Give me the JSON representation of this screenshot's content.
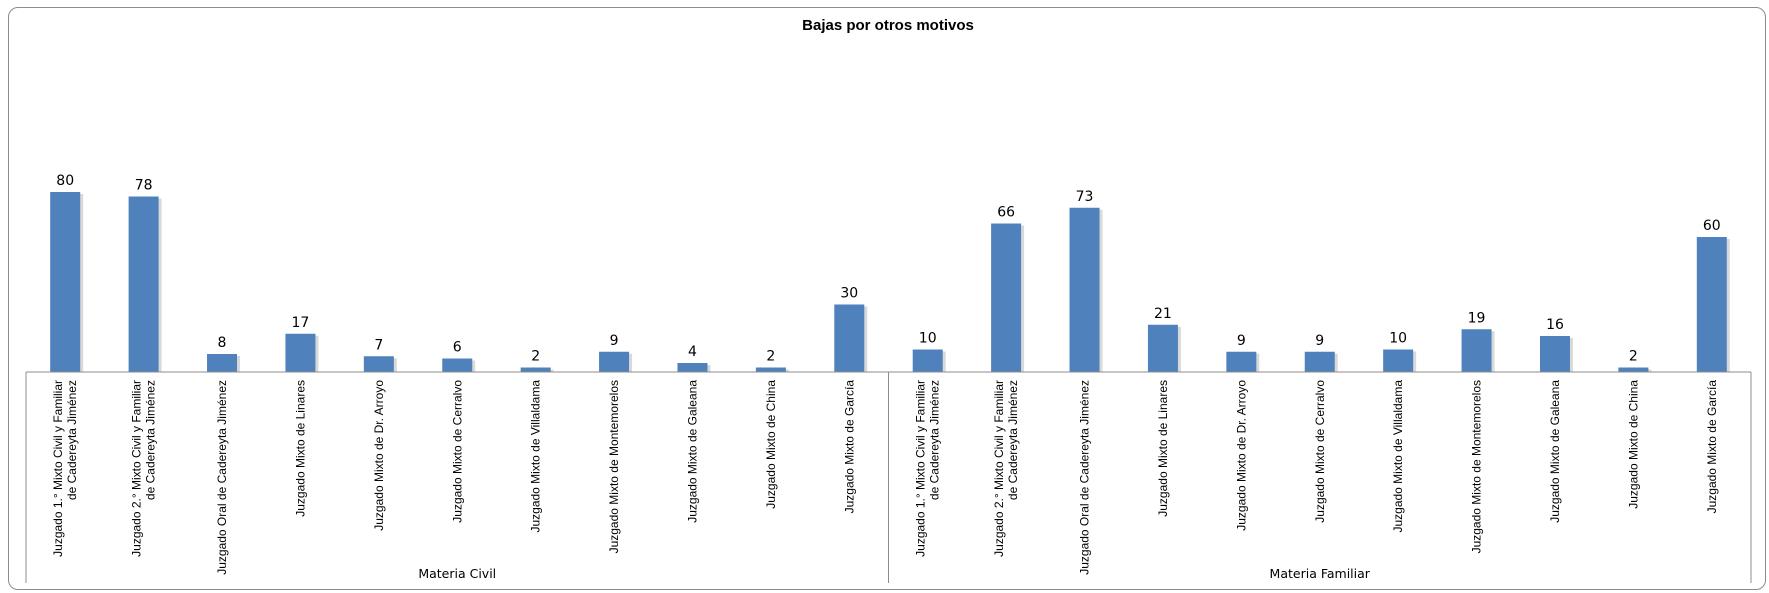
{
  "chart_data": {
    "type": "bar",
    "title": "Bajas por otros motivos",
    "xlabel": "",
    "ylabel": "",
    "ylim": [
      0,
      100
    ],
    "grid": false,
    "legend": "none",
    "bar_color": "#4f81bd",
    "groups": [
      {
        "name": "Materia Civil",
        "categories": [
          "Juzgado 1.° Mixto Civil y Familiar de Cadereyta Jiménez",
          "Juzgado 2.° Mixto Civil y Familiar de Cadereyta Jiménez",
          "Juzgado Oral de Cadereyta Jiménez",
          "Juzgado Mixto de Linares",
          "Juzgado Mixto de Dr. Arroyo",
          "Juzgado Mixto de Cerralvo",
          "Juzgado Mixto de Villaldama",
          "Juzgado Mixto de Montemorelos",
          "Juzgado Mixto de Galeana",
          "Juzgado Mixto de China",
          "Juzgado Mixto de García"
        ],
        "values": [
          80,
          78,
          8,
          17,
          7,
          6,
          2,
          9,
          4,
          2,
          30
        ]
      },
      {
        "name": "Materia Familiar",
        "categories": [
          "Juzgado 1.° Mixto Civil y Familiar de Cadereyta Jiménez",
          "Juzgado 2.° Mixto Civil y Familiar de Cadereyta Jiménez",
          "Juzgado Oral de Cadereyta Jiménez",
          "Juzgado Mixto de Linares",
          "Juzgado Mixto de Dr. Arroyo",
          "Juzgado Mixto de Cerralvo",
          "Juzgado Mixto de Villaldama",
          "Juzgado Mixto de Montemorelos",
          "Juzgado Mixto de Galeana",
          "Juzgado Mixto de China",
          "Juzgado Mixto de García"
        ],
        "values": [
          10,
          66,
          73,
          21,
          9,
          9,
          10,
          19,
          16,
          2,
          60
        ]
      }
    ]
  }
}
